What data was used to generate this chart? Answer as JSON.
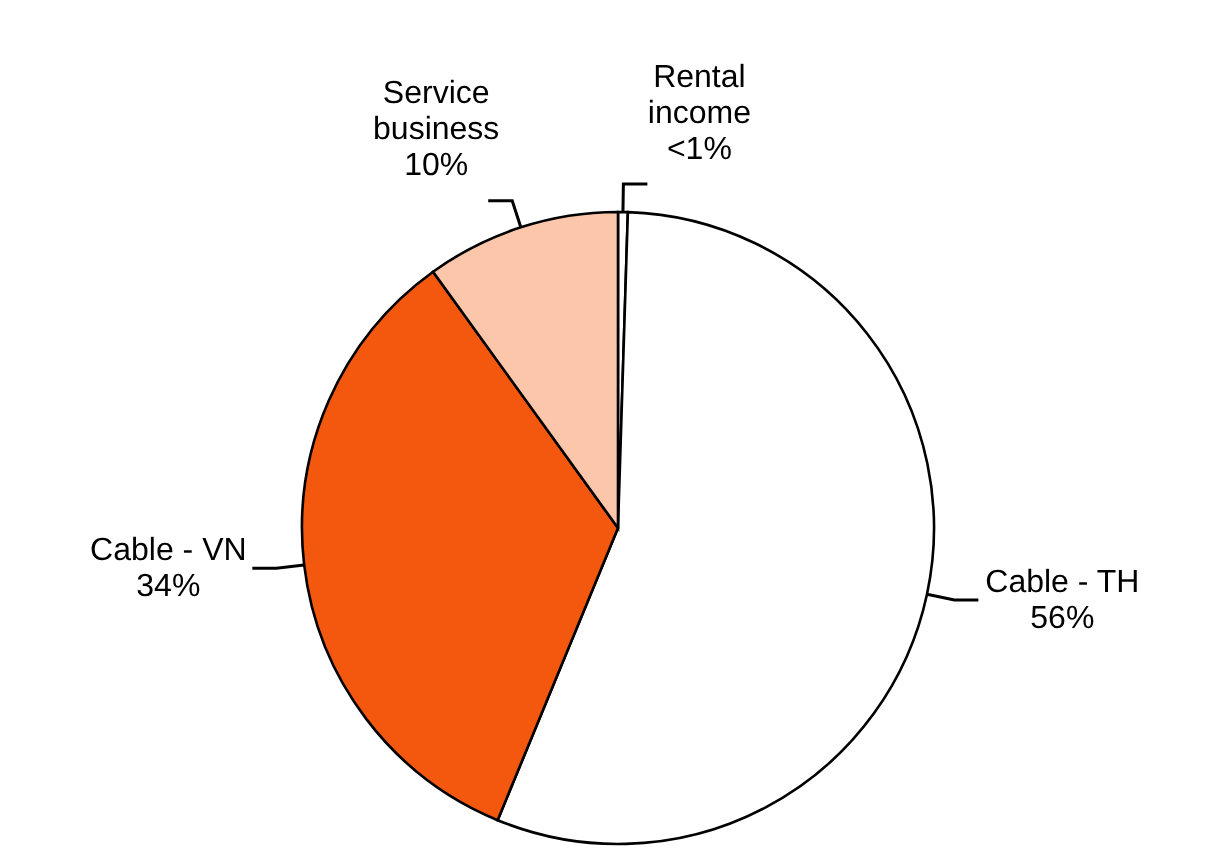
{
  "chart_data": {
    "type": "pie",
    "categories": [
      "Rental income",
      "Cable - TH",
      "Cable - VN",
      "Service business"
    ],
    "values": [
      0.5,
      56,
      34,
      10
    ],
    "value_labels": [
      "<1%",
      "56%",
      "34%",
      "10%"
    ],
    "colors": [
      "#ffffff",
      "#ffffff",
      "#f4580f",
      "#fcc6ab"
    ]
  }
}
